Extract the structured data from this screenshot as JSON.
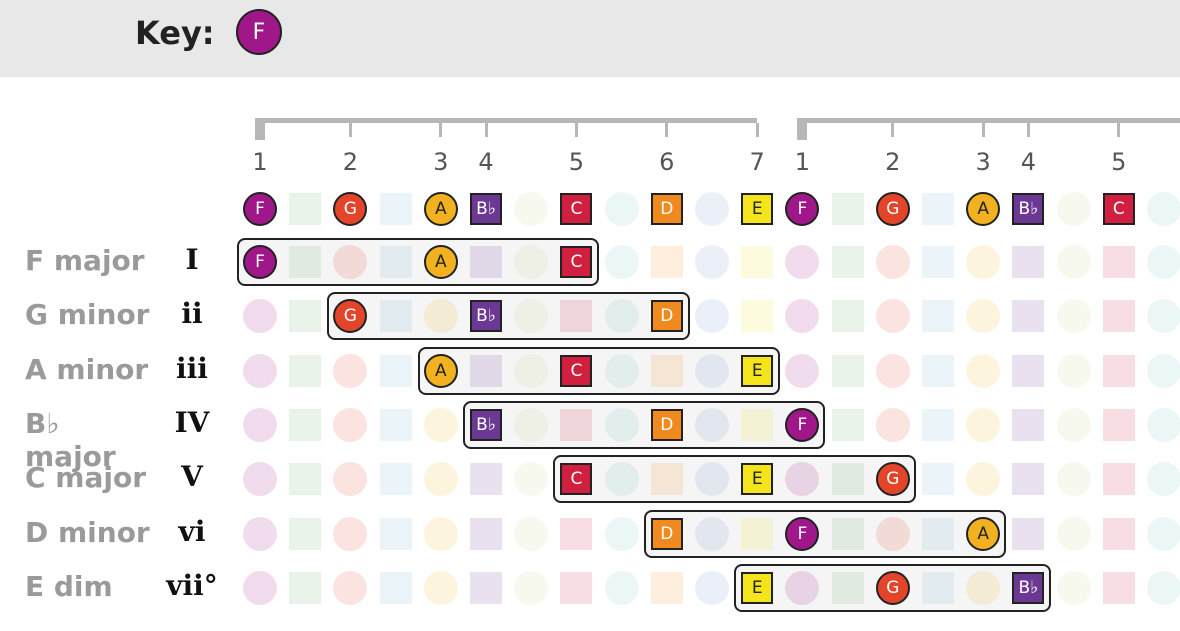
{
  "header": {
    "key_label": "Key:",
    "key_note": "F"
  },
  "degree_numbers": [
    "1",
    "2",
    "3",
    "4",
    "5",
    "6",
    "7",
    "1",
    "2",
    "3",
    "4",
    "5"
  ],
  "notes": {
    "F": {
      "label": "F",
      "shape": "circle",
      "color": "#a0178a"
    },
    "G": {
      "label": "G",
      "shape": "circle",
      "color": "#e3452a"
    },
    "A": {
      "label": "A",
      "shape": "circle",
      "color": "#f2b21f"
    },
    "Bb": {
      "label": "B♭",
      "shape": "square",
      "color": "#6b3894"
    },
    "C": {
      "label": "C",
      "shape": "square",
      "color": "#d01f3f"
    },
    "D": {
      "label": "D",
      "shape": "square",
      "color": "#f08a1e"
    },
    "E": {
      "label": "E",
      "shape": "square",
      "color": "#f4e41c"
    }
  },
  "chords": [
    {
      "name": "F major",
      "roman": "I",
      "notes": [
        "F",
        "A",
        "C"
      ]
    },
    {
      "name": "G minor",
      "roman": "ii",
      "notes": [
        "G",
        "Bb",
        "D"
      ]
    },
    {
      "name": "A minor",
      "roman": "iii",
      "notes": [
        "A",
        "C",
        "E"
      ]
    },
    {
      "name": "B♭ major",
      "roman": "IV",
      "notes": [
        "Bb",
        "D",
        "F"
      ]
    },
    {
      "name": "C major",
      "roman": "V",
      "notes": [
        "C",
        "E",
        "G"
      ]
    },
    {
      "name": "D minor",
      "roman": "vi",
      "notes": [
        "D",
        "F",
        "A"
      ]
    },
    {
      "name": "E dim",
      "roman": "vii°",
      "notes": [
        "E",
        "G",
        "Bb"
      ]
    }
  ]
}
